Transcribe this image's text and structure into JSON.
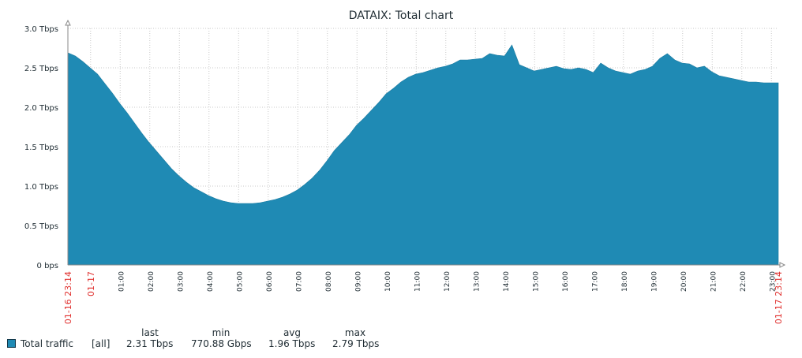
{
  "chart_data": {
    "type": "area",
    "title": "DATAIX: Total chart",
    "ylabel": "",
    "xlabel": "",
    "ylim": [
      0,
      3.0
    ],
    "y_unit": "Tbps",
    "y_ticks": [
      {
        "value": 0,
        "label": "0 bps"
      },
      {
        "value": 0.5,
        "label": "0.5 Tbps"
      },
      {
        "value": 1.0,
        "label": "1.0 Tbps"
      },
      {
        "value": 1.5,
        "label": "1.5 Tbps"
      },
      {
        "value": 2.0,
        "label": "2.0 Tbps"
      },
      {
        "value": 2.5,
        "label": "2.5 Tbps"
      },
      {
        "value": 3.0,
        "label": "3.0 Tbps"
      }
    ],
    "x_start_label": "01-16 23:14",
    "x_end_label": "01-17 23:14",
    "x_ticks": [
      {
        "hour": 0.7667,
        "label": "01-17",
        "highlight": true
      },
      {
        "hour": 1.7667,
        "label": "01:00"
      },
      {
        "hour": 2.7667,
        "label": "02:00"
      },
      {
        "hour": 3.7667,
        "label": "03:00"
      },
      {
        "hour": 4.7667,
        "label": "04:00"
      },
      {
        "hour": 5.7667,
        "label": "05:00"
      },
      {
        "hour": 6.7667,
        "label": "06:00"
      },
      {
        "hour": 7.7667,
        "label": "07:00"
      },
      {
        "hour": 8.7667,
        "label": "08:00"
      },
      {
        "hour": 9.7667,
        "label": "09:00"
      },
      {
        "hour": 10.7667,
        "label": "10:00"
      },
      {
        "hour": 11.7667,
        "label": "11:00"
      },
      {
        "hour": 12.7667,
        "label": "12:00"
      },
      {
        "hour": 13.7667,
        "label": "13:00"
      },
      {
        "hour": 14.7667,
        "label": "14:00"
      },
      {
        "hour": 15.7667,
        "label": "15:00"
      },
      {
        "hour": 16.7667,
        "label": "16:00"
      },
      {
        "hour": 17.7667,
        "label": "17:00"
      },
      {
        "hour": 18.7667,
        "label": "18:00"
      },
      {
        "hour": 19.7667,
        "label": "19:00"
      },
      {
        "hour": 20.7667,
        "label": "20:00"
      },
      {
        "hour": 21.7667,
        "label": "21:00"
      },
      {
        "hour": 22.7667,
        "label": "22:00"
      },
      {
        "hour": 23.7667,
        "label": "23:00"
      }
    ],
    "grid": true,
    "colors": {
      "fill": "#1f8ab4",
      "grid": "#c8c8c8",
      "axis": "#888888",
      "date_label": "#e0312f"
    },
    "series": [
      {
        "name": "Total traffic",
        "x_hours": [
          0,
          0.25,
          0.5,
          0.75,
          1.0,
          1.25,
          1.5,
          1.75,
          2.0,
          2.25,
          2.5,
          2.75,
          3.0,
          3.25,
          3.5,
          3.75,
          4.0,
          4.25,
          4.5,
          4.75,
          5.0,
          5.25,
          5.5,
          5.75,
          6.0,
          6.25,
          6.5,
          6.75,
          7.0,
          7.25,
          7.5,
          7.75,
          8.0,
          8.25,
          8.5,
          8.75,
          9.0,
          9.25,
          9.5,
          9.75,
          10.0,
          10.25,
          10.5,
          10.75,
          11.0,
          11.25,
          11.5,
          11.75,
          12.0,
          12.25,
          12.5,
          12.75,
          13.0,
          13.25,
          13.5,
          13.75,
          14.0,
          14.25,
          14.5,
          14.75,
          15.0,
          15.25,
          15.5,
          15.75,
          16.0,
          16.25,
          16.5,
          16.75,
          17.0,
          17.25,
          17.5,
          17.75,
          18.0,
          18.25,
          18.5,
          18.75,
          19.0,
          19.25,
          19.5,
          19.75,
          20.0,
          20.25,
          20.5,
          20.75,
          21.0,
          21.25,
          21.5,
          21.75,
          22.0,
          22.25,
          22.5,
          22.75,
          23.0,
          23.25,
          23.5,
          23.75,
          24.0
        ],
        "values": [
          2.69,
          2.65,
          2.58,
          2.5,
          2.42,
          2.3,
          2.18,
          2.05,
          1.93,
          1.8,
          1.67,
          1.55,
          1.44,
          1.33,
          1.22,
          1.13,
          1.05,
          0.98,
          0.93,
          0.88,
          0.84,
          0.81,
          0.79,
          0.78,
          0.78,
          0.78,
          0.79,
          0.81,
          0.83,
          0.86,
          0.9,
          0.95,
          1.02,
          1.1,
          1.2,
          1.32,
          1.45,
          1.55,
          1.65,
          1.77,
          1.86,
          1.96,
          2.06,
          2.17,
          2.24,
          2.32,
          2.38,
          2.42,
          2.44,
          2.47,
          2.5,
          2.52,
          2.55,
          2.6,
          2.6,
          2.61,
          2.62,
          2.68,
          2.66,
          2.65,
          2.79,
          2.54,
          2.5,
          2.46,
          2.48,
          2.5,
          2.52,
          2.49,
          2.48,
          2.5,
          2.48,
          2.44,
          2.56,
          2.5,
          2.46,
          2.44,
          2.42,
          2.46,
          2.48,
          2.52,
          2.62,
          2.68,
          2.6,
          2.56,
          2.55,
          2.5,
          2.52,
          2.45,
          2.4,
          2.38,
          2.36,
          2.34,
          2.32,
          2.32,
          2.31,
          2.31,
          2.31
        ]
      }
    ]
  },
  "legend": {
    "headers": {
      "last": "last",
      "min": "min",
      "avg": "avg",
      "max": "max"
    },
    "item_name": "Total traffic",
    "function": "[all]",
    "last": "2.31 Tbps",
    "min": "770.88 Gbps",
    "avg": "1.96 Tbps",
    "max": "2.79 Tbps"
  }
}
